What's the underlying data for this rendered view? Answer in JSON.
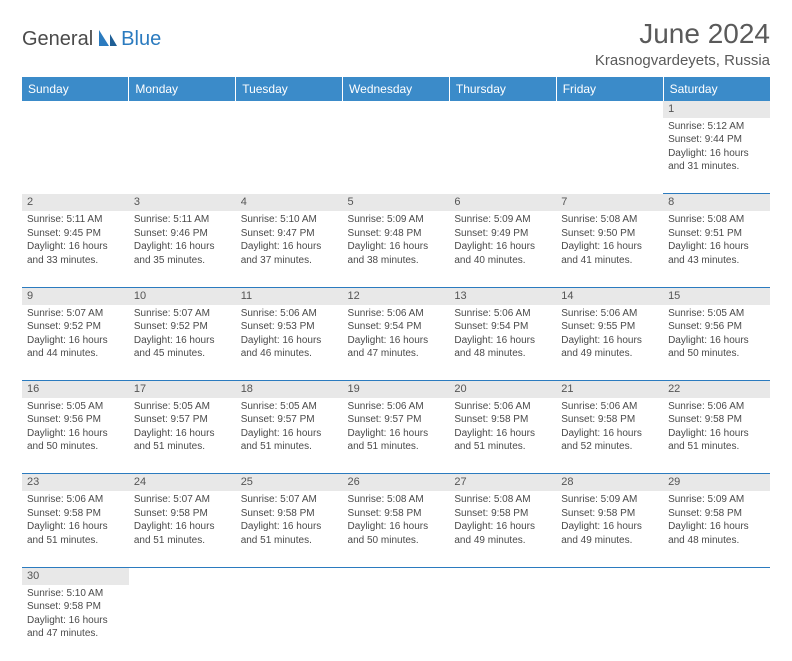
{
  "logo": {
    "text1": "General",
    "text2": "Blue"
  },
  "title": "June 2024",
  "location": "Krasnogvardeyets, Russia",
  "colors": {
    "header_bg": "#3b8bc9",
    "header_text": "#ffffff",
    "border": "#2b7bbf",
    "daynum_bg": "#e8e8e8",
    "text": "#4a4a4a",
    "logo_gray": "#4a4a4a",
    "logo_blue": "#2b7bbf"
  },
  "weekdays": [
    "Sunday",
    "Monday",
    "Tuesday",
    "Wednesday",
    "Thursday",
    "Friday",
    "Saturday"
  ],
  "weeks": [
    [
      null,
      null,
      null,
      null,
      null,
      null,
      {
        "n": "1",
        "sr": "5:12 AM",
        "ss": "9:44 PM",
        "dl": "16 hours and 31 minutes."
      }
    ],
    [
      {
        "n": "2",
        "sr": "5:11 AM",
        "ss": "9:45 PM",
        "dl": "16 hours and 33 minutes."
      },
      {
        "n": "3",
        "sr": "5:11 AM",
        "ss": "9:46 PM",
        "dl": "16 hours and 35 minutes."
      },
      {
        "n": "4",
        "sr": "5:10 AM",
        "ss": "9:47 PM",
        "dl": "16 hours and 37 minutes."
      },
      {
        "n": "5",
        "sr": "5:09 AM",
        "ss": "9:48 PM",
        "dl": "16 hours and 38 minutes."
      },
      {
        "n": "6",
        "sr": "5:09 AM",
        "ss": "9:49 PM",
        "dl": "16 hours and 40 minutes."
      },
      {
        "n": "7",
        "sr": "5:08 AM",
        "ss": "9:50 PM",
        "dl": "16 hours and 41 minutes."
      },
      {
        "n": "8",
        "sr": "5:08 AM",
        "ss": "9:51 PM",
        "dl": "16 hours and 43 minutes."
      }
    ],
    [
      {
        "n": "9",
        "sr": "5:07 AM",
        "ss": "9:52 PM",
        "dl": "16 hours and 44 minutes."
      },
      {
        "n": "10",
        "sr": "5:07 AM",
        "ss": "9:52 PM",
        "dl": "16 hours and 45 minutes."
      },
      {
        "n": "11",
        "sr": "5:06 AM",
        "ss": "9:53 PM",
        "dl": "16 hours and 46 minutes."
      },
      {
        "n": "12",
        "sr": "5:06 AM",
        "ss": "9:54 PM",
        "dl": "16 hours and 47 minutes."
      },
      {
        "n": "13",
        "sr": "5:06 AM",
        "ss": "9:54 PM",
        "dl": "16 hours and 48 minutes."
      },
      {
        "n": "14",
        "sr": "5:06 AM",
        "ss": "9:55 PM",
        "dl": "16 hours and 49 minutes."
      },
      {
        "n": "15",
        "sr": "5:05 AM",
        "ss": "9:56 PM",
        "dl": "16 hours and 50 minutes."
      }
    ],
    [
      {
        "n": "16",
        "sr": "5:05 AM",
        "ss": "9:56 PM",
        "dl": "16 hours and 50 minutes."
      },
      {
        "n": "17",
        "sr": "5:05 AM",
        "ss": "9:57 PM",
        "dl": "16 hours and 51 minutes."
      },
      {
        "n": "18",
        "sr": "5:05 AM",
        "ss": "9:57 PM",
        "dl": "16 hours and 51 minutes."
      },
      {
        "n": "19",
        "sr": "5:06 AM",
        "ss": "9:57 PM",
        "dl": "16 hours and 51 minutes."
      },
      {
        "n": "20",
        "sr": "5:06 AM",
        "ss": "9:58 PM",
        "dl": "16 hours and 51 minutes."
      },
      {
        "n": "21",
        "sr": "5:06 AM",
        "ss": "9:58 PM",
        "dl": "16 hours and 52 minutes."
      },
      {
        "n": "22",
        "sr": "5:06 AM",
        "ss": "9:58 PM",
        "dl": "16 hours and 51 minutes."
      }
    ],
    [
      {
        "n": "23",
        "sr": "5:06 AM",
        "ss": "9:58 PM",
        "dl": "16 hours and 51 minutes."
      },
      {
        "n": "24",
        "sr": "5:07 AM",
        "ss": "9:58 PM",
        "dl": "16 hours and 51 minutes."
      },
      {
        "n": "25",
        "sr": "5:07 AM",
        "ss": "9:58 PM",
        "dl": "16 hours and 51 minutes."
      },
      {
        "n": "26",
        "sr": "5:08 AM",
        "ss": "9:58 PM",
        "dl": "16 hours and 50 minutes."
      },
      {
        "n": "27",
        "sr": "5:08 AM",
        "ss": "9:58 PM",
        "dl": "16 hours and 49 minutes."
      },
      {
        "n": "28",
        "sr": "5:09 AM",
        "ss": "9:58 PM",
        "dl": "16 hours and 49 minutes."
      },
      {
        "n": "29",
        "sr": "5:09 AM",
        "ss": "9:58 PM",
        "dl": "16 hours and 48 minutes."
      }
    ],
    [
      {
        "n": "30",
        "sr": "5:10 AM",
        "ss": "9:58 PM",
        "dl": "16 hours and 47 minutes."
      },
      null,
      null,
      null,
      null,
      null,
      null
    ]
  ],
  "labels": {
    "sunrise": "Sunrise:",
    "sunset": "Sunset:",
    "daylight": "Daylight:"
  }
}
